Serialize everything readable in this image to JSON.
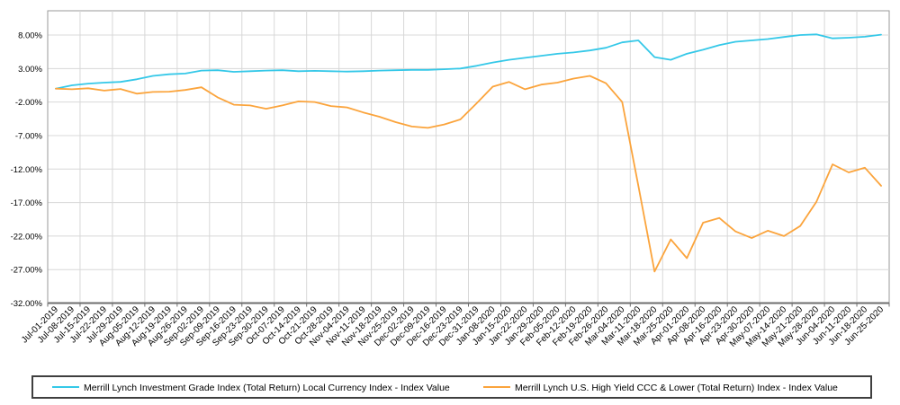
{
  "chart_data": {
    "type": "line",
    "title": "",
    "xlabel": "",
    "ylabel": "",
    "grid": true,
    "legend_position": "bottom",
    "ylim": [
      -32,
      11.6
    ],
    "yticks": {
      "values": [
        8,
        3,
        -2,
        -7,
        -12,
        -17,
        -22,
        -27,
        -32
      ],
      "labels": [
        "8.00%",
        "3.00%",
        "-2.00%",
        "-7.00%",
        "-12.00%",
        "-17.00%",
        "-22.00%",
        "-27.00%",
        "-32.00%"
      ]
    },
    "categories": [
      "Jul-01-2019",
      "Jul-08-2019",
      "Jul-15-2019",
      "Jul-22-2019",
      "Jul-29-2019",
      "Aug-05-2019",
      "Aug-12-2019",
      "Aug-19-2019",
      "Aug-26-2019",
      "Sep-02-2019",
      "Sep-09-2019",
      "Sep-16-2019",
      "Sep-23-2019",
      "Sep-30-2019",
      "Oct-07-2019",
      "Oct-14-2019",
      "Oct-21-2019",
      "Oct-28-2019",
      "Nov-04-2019",
      "Nov-11-2019",
      "Nov-18-2019",
      "Nov-25-2019",
      "Dec-02-2019",
      "Dec-09-2019",
      "Dec-16-2019",
      "Dec-23-2019",
      "Dec-31-2019",
      "Jan-08-2020",
      "Jan-15-2020",
      "Jan-22-2020",
      "Jan-29-2020",
      "Feb-05-2020",
      "Feb-12-2020",
      "Feb-19-2020",
      "Feb-26-2020",
      "Mar-04-2020",
      "Mar-11-2020",
      "Mar-18-2020",
      "Mar-25-2020",
      "Apr-01-2020",
      "Apr-08-2020",
      "Apr-16-2020",
      "Apr-23-2020",
      "Apr-30-2020",
      "May-07-2020",
      "May-14-2020",
      "May-21-2020",
      "May-28-2020",
      "Jun-04-2020",
      "Jun-11-2020",
      "Jun-18-2020",
      "Jun-25-2020"
    ],
    "series": [
      {
        "name": "Merrill Lynch Investment Grade Index (Total Return) Local Currency Index - Index Value",
        "color": "#35C8E8",
        "values": [
          0.0,
          0.5,
          0.75,
          0.9,
          1.0,
          1.4,
          1.9,
          2.15,
          2.25,
          2.7,
          2.75,
          2.5,
          2.6,
          2.7,
          2.75,
          2.6,
          2.65,
          2.6,
          2.55,
          2.6,
          2.7,
          2.75,
          2.8,
          2.8,
          2.9,
          3.0,
          3.4,
          3.9,
          4.3,
          4.6,
          4.9,
          5.2,
          5.4,
          5.7,
          6.1,
          6.9,
          7.2,
          4.7,
          4.3,
          5.2,
          5.8,
          6.5,
          7.0,
          7.2,
          7.4,
          7.7,
          8.0,
          8.1,
          7.5,
          7.6,
          7.75,
          8.05
        ]
      },
      {
        "name": "Merrill Lynch U.S. High Yield CCC & Lower (Total Return) Index - Index Value",
        "color": "#FBA43C",
        "values": [
          0.0,
          -0.1,
          0.05,
          -0.3,
          -0.05,
          -0.75,
          -0.5,
          -0.45,
          -0.2,
          0.2,
          -1.3,
          -2.4,
          -2.5,
          -3.0,
          -2.5,
          -1.9,
          -2.0,
          -2.6,
          -2.8,
          -3.55,
          -4.2,
          -5.0,
          -5.65,
          -5.85,
          -5.35,
          -4.6,
          -2.2,
          0.3,
          1.0,
          -0.1,
          0.6,
          0.9,
          1.5,
          1.9,
          0.8,
          -2.0,
          -14.5,
          -27.3,
          -22.5,
          -25.3,
          -20.0,
          -19.3,
          -21.3,
          -22.3,
          -21.2,
          -22.0,
          -20.5,
          -16.9,
          -11.3,
          -12.5,
          -11.8,
          -14.5
        ]
      }
    ],
    "colors": {
      "gridline": "#D8D8D8",
      "plot_border": "#9A9A9A",
      "axis_line": "#6E6E6E",
      "legend_border": "#3F3F3F",
      "background": "#FFFFFF"
    }
  },
  "legend": {
    "entries": [
      "Merrill Lynch Investment Grade Index (Total Return) Local Currency Index - Index Value",
      "Merrill Lynch U.S. High Yield CCC & Lower (Total Return) Index - Index Value"
    ]
  }
}
